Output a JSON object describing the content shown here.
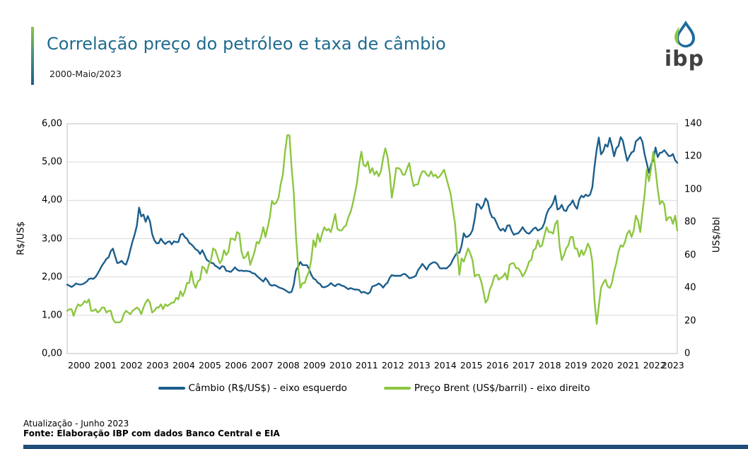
{
  "header": {
    "title": "Correlação preço do petróleo e taxa de câmbio",
    "subtitle": "2000-Maio/2023",
    "logo_text": "ibp"
  },
  "colors": {
    "title_blue": "#1f6b8e",
    "line_blue": "#1b5e8c",
    "line_green": "#8cc63f",
    "grid": "#d9d9d9",
    "plot_border": "#bfbfbf",
    "accent_green": "#8cc63f",
    "bottom_bar_navy": "#1f4e79",
    "logo_gray": "#414042"
  },
  "chart_data": {
    "type": "line",
    "title": "Correlação preço do petróleo e taxa de câmbio",
    "period": "2000-Maio/2023",
    "x_unit": "month",
    "x_start": "2000-01",
    "x_end": "2023-05",
    "grid": true,
    "legend_position": "bottom",
    "x_tick_labels": [
      "2000",
      "2001",
      "2002",
      "2003",
      "2004",
      "2005",
      "2006",
      "2007",
      "2008",
      "2009",
      "2010",
      "2011",
      "2012",
      "2013",
      "2014",
      "2015",
      "2016",
      "2017",
      "2018",
      "2019",
      "2020",
      "2021",
      "2022",
      "2023"
    ],
    "left_axis": {
      "label": "R$/US$",
      "min": 0,
      "max": 6,
      "tick_labels": [
        "0,00",
        "1,00",
        "2,00",
        "3,00",
        "4,00",
        "5,00",
        "6,00"
      ]
    },
    "right_axis": {
      "label": "US$/bbl",
      "min": 0,
      "max": 140,
      "tick_labels": [
        "0",
        "20",
        "40",
        "60",
        "80",
        "100",
        "120",
        "140"
      ]
    },
    "series": [
      {
        "name": "Câmbio (R$/US$) - eixo esquerdo",
        "axis": "left",
        "color": "#1b5e8c",
        "values": [
          1.8,
          1.77,
          1.74,
          1.77,
          1.83,
          1.81,
          1.8,
          1.81,
          1.84,
          1.88,
          1.95,
          1.96,
          1.95,
          2.0,
          2.09,
          2.19,
          2.3,
          2.38,
          2.47,
          2.51,
          2.67,
          2.74,
          2.54,
          2.36,
          2.38,
          2.42,
          2.35,
          2.32,
          2.48,
          2.71,
          2.93,
          3.11,
          3.34,
          3.81,
          3.58,
          3.63,
          3.44,
          3.59,
          3.45,
          3.12,
          2.96,
          2.88,
          2.88,
          3.0,
          2.92,
          2.86,
          2.91,
          2.93,
          2.85,
          2.93,
          2.91,
          2.91,
          3.1,
          3.13,
          3.04,
          3.0,
          2.89,
          2.85,
          2.79,
          2.72,
          2.69,
          2.6,
          2.7,
          2.58,
          2.45,
          2.41,
          2.37,
          2.36,
          2.29,
          2.26,
          2.21,
          2.28,
          2.27,
          2.16,
          2.15,
          2.13,
          2.18,
          2.25,
          2.19,
          2.16,
          2.17,
          2.15,
          2.16,
          2.15,
          2.14,
          2.1,
          2.09,
          2.03,
          1.98,
          1.93,
          1.88,
          1.97,
          1.9,
          1.8,
          1.77,
          1.79,
          1.77,
          1.73,
          1.71,
          1.69,
          1.66,
          1.62,
          1.59,
          1.61,
          1.8,
          2.17,
          2.27,
          2.39,
          2.31,
          2.31,
          2.31,
          2.21,
          2.06,
          1.96,
          1.93,
          1.85,
          1.82,
          1.74,
          1.73,
          1.75,
          1.78,
          1.84,
          1.79,
          1.76,
          1.81,
          1.81,
          1.77,
          1.76,
          1.72,
          1.68,
          1.71,
          1.69,
          1.67,
          1.67,
          1.66,
          1.59,
          1.61,
          1.59,
          1.56,
          1.6,
          1.75,
          1.77,
          1.79,
          1.83,
          1.79,
          1.72,
          1.8,
          1.85,
          1.98,
          2.05,
          2.03,
          2.03,
          2.03,
          2.03,
          2.07,
          2.08,
          2.03,
          1.97,
          1.98,
          2.0,
          2.03,
          2.17,
          2.25,
          2.34,
          2.27,
          2.19,
          2.3,
          2.35,
          2.38,
          2.38,
          2.33,
          2.23,
          2.22,
          2.23,
          2.22,
          2.27,
          2.33,
          2.45,
          2.55,
          2.64,
          2.63,
          2.82,
          3.14,
          3.04,
          3.06,
          3.11,
          3.22,
          3.51,
          3.91,
          3.88,
          3.78,
          3.87,
          4.05,
          3.97,
          3.7,
          3.56,
          3.54,
          3.42,
          3.28,
          3.21,
          3.26,
          3.19,
          3.34,
          3.35,
          3.2,
          3.1,
          3.13,
          3.14,
          3.21,
          3.3,
          3.21,
          3.15,
          3.13,
          3.19,
          3.26,
          3.29,
          3.21,
          3.24,
          3.28,
          3.41,
          3.64,
          3.77,
          3.83,
          3.93,
          4.12,
          3.76,
          3.79,
          3.88,
          3.74,
          3.72,
          3.85,
          3.9,
          4.0,
          3.86,
          3.78,
          4.02,
          4.12,
          4.08,
          4.15,
          4.11,
          4.15,
          4.34,
          4.88,
          5.33,
          5.64,
          5.2,
          5.28,
          5.46,
          5.4,
          5.63,
          5.42,
          5.15,
          5.36,
          5.42,
          5.65,
          5.56,
          5.29,
          5.03,
          5.15,
          5.25,
          5.28,
          5.54,
          5.59,
          5.65,
          5.53,
          5.2,
          4.97,
          4.72,
          4.95,
          5.05,
          5.38,
          5.13,
          5.24,
          5.25,
          5.31,
          5.24,
          5.16,
          5.16,
          5.21,
          5.05,
          4.98
        ]
      },
      {
        "name": "Preço Brent (US$/barril) - eixo direito",
        "axis": "right",
        "color": "#8cc63f",
        "values": [
          26,
          27,
          27,
          23,
          27,
          30,
          29,
          30,
          32,
          31,
          33,
          26,
          26,
          27,
          25,
          26,
          28,
          28,
          25,
          26,
          26,
          21,
          19,
          19,
          19,
          20,
          24,
          26,
          25,
          24,
          26,
          27,
          28,
          27,
          24,
          28,
          31,
          33,
          31,
          25,
          26,
          28,
          28,
          30,
          27,
          30,
          29,
          30,
          31,
          31,
          34,
          33,
          38,
          35,
          38,
          43,
          43,
          50,
          43,
          40,
          44,
          45,
          53,
          52,
          49,
          54,
          57,
          64,
          63,
          59,
          55,
          57,
          63,
          60,
          62,
          70,
          70,
          69,
          74,
          73,
          62,
          58,
          59,
          62,
          54,
          58,
          62,
          68,
          67,
          71,
          77,
          71,
          77,
          83,
          93,
          91,
          92,
          95,
          103,
          109,
          123,
          133,
          133,
          113,
          98,
          72,
          53,
          40,
          43,
          43,
          47,
          50,
          57,
          69,
          65,
          73,
          68,
          73,
          77,
          75,
          76,
          74,
          79,
          85,
          76,
          75,
          75,
          77,
          78,
          83,
          86,
          91,
          97,
          104,
          115,
          123,
          115,
          114,
          117,
          110,
          113,
          109,
          111,
          108,
          111,
          119,
          125,
          120,
          110,
          95,
          103,
          113,
          113,
          112,
          109,
          109,
          113,
          116,
          108,
          102,
          103,
          103,
          108,
          111,
          111,
          109,
          108,
          111,
          108,
          109,
          107,
          108,
          110,
          112,
          107,
          102,
          97,
          88,
          79,
          62,
          48,
          58,
          56,
          60,
          64,
          61,
          57,
          47,
          48,
          48,
          44,
          38,
          31,
          33,
          39,
          42,
          47,
          48,
          45,
          46,
          47,
          49,
          45,
          54,
          55,
          55,
          52,
          52,
          50,
          47,
          49,
          52,
          56,
          57,
          63,
          64,
          69,
          65,
          66,
          72,
          77,
          74,
          74,
          73,
          79,
          81,
          65,
          57,
          60,
          64,
          66,
          71,
          71,
          64,
          64,
          59,
          63,
          60,
          63,
          67,
          64,
          56,
          32,
          18,
          29,
          40,
          43,
          45,
          41,
          40,
          43,
          50,
          55,
          62,
          66,
          65,
          68,
          73,
          75,
          71,
          75,
          84,
          81,
          74,
          86,
          97,
          112,
          105,
          113,
          123,
          112,
          100,
          91,
          93,
          91,
          81,
          83,
          83,
          79,
          84,
          75
        ]
      }
    ]
  },
  "footer": {
    "updated": "Atualização - Junho 2023",
    "source": "Fonte: Elaboração IBP com dados Banco Central e EIA"
  }
}
